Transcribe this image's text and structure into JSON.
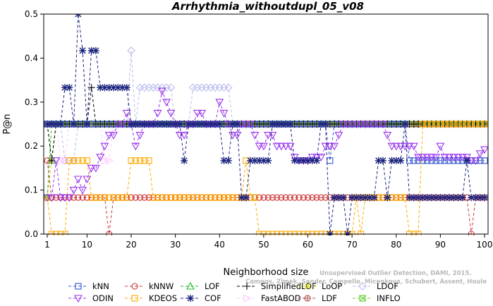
{
  "chart_data": {
    "type": "line",
    "title": "Arrhythmia_withoutdupl_05_v08",
    "xlabel": "Neighborhood size",
    "ylabel": "P@n",
    "xlim": [
      1,
      100
    ],
    "ylim": [
      0,
      0.5
    ],
    "x_ticks": [
      1,
      10,
      20,
      30,
      40,
      50,
      60,
      70,
      80,
      90,
      100
    ],
    "y_ticks": [
      0.0,
      0.1,
      0.2,
      0.3,
      0.4,
      0.5
    ],
    "y_tick_labels": [
      "0.0",
      "0.1",
      "0.2",
      "0.3",
      "0.4",
      "0.5"
    ],
    "grid": false,
    "legend_position": "bottom",
    "credit": "Campos, Zimek, Sander, Campello, Micenkova, Schubert, Assent, Houle",
    "credit_line1": "Unsupervised Outlier Detection, DAMI, 2015.",
    "series": [
      {
        "name": "kNN",
        "color": "#3355cc",
        "marker": "square",
        "points": [
          [
            1,
            0.25
          ],
          [
            64,
            0.25
          ],
          [
            65,
            0.167
          ],
          [
            66,
            0.25
          ],
          [
            82,
            0.25
          ],
          [
            83,
            0.167
          ],
          [
            100,
            0.167
          ]
        ]
      },
      {
        "name": "kNNW",
        "color": "#cc3333",
        "marker": "circle",
        "points": [
          [
            1,
            0.167
          ],
          [
            2,
            0.083
          ],
          [
            14,
            0.083
          ],
          [
            15,
            0.0
          ],
          [
            16,
            0.083
          ],
          [
            47,
            0.083
          ],
          [
            48,
            0.083
          ],
          [
            96,
            0.083
          ],
          [
            97,
            0.0
          ],
          [
            98,
            0.083
          ],
          [
            100,
            0.083
          ]
        ]
      },
      {
        "name": "LOF",
        "color": "#22bb22",
        "marker": "triangle",
        "points": [
          [
            1,
            0.083
          ],
          [
            2,
            0.25
          ],
          [
            3,
            0.25
          ],
          [
            100,
            0.25
          ]
        ]
      },
      {
        "name": "SimplifiedLOF",
        "color": "#000000",
        "marker": "plus",
        "points": [
          [
            1,
            0.25
          ],
          [
            2,
            0.167
          ],
          [
            3,
            0.25
          ],
          [
            10,
            0.25
          ],
          [
            11,
            0.333
          ],
          [
            12,
            0.25
          ],
          [
            100,
            0.25
          ]
        ]
      },
      {
        "name": "LoOP",
        "color": "#dddd00",
        "marker": "cross",
        "points": [
          [
            1,
            0.083
          ],
          [
            2,
            0.167
          ],
          [
            3,
            0.25
          ],
          [
            100,
            0.25
          ]
        ]
      },
      {
        "name": "LDOF",
        "color": "#bbbbee",
        "marker": "diamond",
        "points": [
          [
            1,
            0.25
          ],
          [
            5,
            0.167
          ],
          [
            8,
            0.25
          ],
          [
            19,
            0.25
          ],
          [
            20,
            0.417
          ],
          [
            21,
            0.25
          ],
          [
            22,
            0.333
          ],
          [
            28,
            0.333
          ],
          [
            30,
            0.25
          ],
          [
            34,
            0.333
          ],
          [
            42,
            0.333
          ],
          [
            43,
            0.25
          ],
          [
            100,
            0.25
          ]
        ]
      },
      {
        "name": "ODIN",
        "color": "#9933ee",
        "marker": "triangle-down",
        "points": [
          [
            1,
            0.083
          ],
          [
            2,
            0.083
          ],
          [
            3,
            0.167
          ],
          [
            4,
            0.083
          ],
          [
            5,
            0.083
          ],
          [
            6,
            0.083
          ],
          [
            7,
            0.1
          ],
          [
            8,
            0.125
          ],
          [
            9,
            0.1
          ],
          [
            10,
            0.125
          ],
          [
            11,
            0.15
          ],
          [
            12,
            0.15
          ],
          [
            13,
            0.175
          ],
          [
            14,
            0.2
          ],
          [
            15,
            0.225
          ],
          [
            16,
            0.225
          ],
          [
            17,
            0.25
          ],
          [
            18,
            0.25
          ],
          [
            19,
            0.275
          ],
          [
            20,
            0.25
          ],
          [
            21,
            0.2
          ],
          [
            22,
            0.225
          ],
          [
            23,
            0.25
          ],
          [
            24,
            0.25
          ],
          [
            25,
            0.25
          ],
          [
            26,
            0.275
          ],
          [
            27,
            0.325
          ],
          [
            28,
            0.3
          ],
          [
            29,
            0.275
          ],
          [
            30,
            0.25
          ],
          [
            31,
            0.225
          ],
          [
            32,
            0.225
          ],
          [
            33,
            0.25
          ],
          [
            34,
            0.25
          ],
          [
            35,
            0.275
          ],
          [
            36,
            0.275
          ],
          [
            37,
            0.25
          ],
          [
            38,
            0.25
          ],
          [
            39,
            0.25
          ],
          [
            40,
            0.3
          ],
          [
            41,
            0.275
          ],
          [
            42,
            0.25
          ],
          [
            43,
            0.225
          ],
          [
            44,
            0.225
          ],
          [
            45,
            0.25
          ],
          [
            46,
            0.25
          ],
          [
            47,
            0.25
          ],
          [
            48,
            0.225
          ],
          [
            49,
            0.2
          ],
          [
            50,
            0.2
          ],
          [
            51,
            0.225
          ],
          [
            52,
            0.225
          ],
          [
            53,
            0.2
          ],
          [
            54,
            0.2
          ],
          [
            55,
            0.2
          ],
          [
            56,
            0.2
          ],
          [
            57,
            0.175
          ],
          [
            58,
            0.167
          ],
          [
            59,
            0.167
          ],
          [
            60,
            0.167
          ],
          [
            61,
            0.175
          ],
          [
            62,
            0.175
          ],
          [
            63,
            0.175
          ],
          [
            64,
            0.2
          ],
          [
            65,
            0.2
          ],
          [
            66,
            0.2
          ],
          [
            67,
            0.225
          ],
          [
            68,
            0.25
          ],
          [
            69,
            0.25
          ],
          [
            70,
            0.25
          ],
          [
            75,
            0.25
          ],
          [
            76,
            0.25
          ],
          [
            77,
            0.25
          ],
          [
            78,
            0.225
          ],
          [
            79,
            0.2
          ],
          [
            80,
            0.2
          ],
          [
            81,
            0.2
          ],
          [
            82,
            0.2
          ],
          [
            83,
            0.2
          ],
          [
            84,
            0.2
          ],
          [
            85,
            0.175
          ],
          [
            86,
            0.175
          ],
          [
            87,
            0.175
          ],
          [
            88,
            0.175
          ],
          [
            89,
            0.175
          ],
          [
            90,
            0.2
          ],
          [
            91,
            0.175
          ],
          [
            92,
            0.175
          ],
          [
            93,
            0.175
          ],
          [
            94,
            0.175
          ],
          [
            95,
            0.175
          ],
          [
            96,
            0.175
          ],
          [
            97,
            0.167
          ],
          [
            98,
            0.167
          ],
          [
            99,
            0.183
          ],
          [
            100,
            0.192
          ]
        ]
      },
      {
        "name": "KDEOS",
        "color": "#ffaa00",
        "marker": "square",
        "points": [
          [
            1,
            0.083
          ],
          [
            2,
            0.0
          ],
          [
            5,
            0.0
          ],
          [
            6,
            0.167
          ],
          [
            10,
            0.167
          ],
          [
            11,
            0.083
          ],
          [
            19,
            0.083
          ],
          [
            20,
            0.167
          ],
          [
            24,
            0.167
          ],
          [
            25,
            0.083
          ],
          [
            45,
            0.083
          ],
          [
            46,
            0.167
          ],
          [
            47,
            0.083
          ],
          [
            48,
            0.083
          ],
          [
            49,
            0.0
          ],
          [
            70,
            0.0
          ],
          [
            71,
            0.083
          ],
          [
            72,
            0.0
          ],
          [
            73,
            0.083
          ],
          [
            82,
            0.083
          ],
          [
            83,
            0.0
          ],
          [
            85,
            0.0
          ],
          [
            86,
            0.25
          ],
          [
            100,
            0.25
          ]
        ]
      },
      {
        "name": "COF",
        "color": "#1a237e",
        "marker": "asterisk",
        "points": [
          [
            1,
            0.25
          ],
          [
            4,
            0.25
          ],
          [
            5,
            0.333
          ],
          [
            6,
            0.333
          ],
          [
            7,
            0.25
          ],
          [
            8,
            0.5
          ],
          [
            9,
            0.417
          ],
          [
            10,
            0.25
          ],
          [
            11,
            0.417
          ],
          [
            12,
            0.417
          ],
          [
            13,
            0.333
          ],
          [
            14,
            0.333
          ],
          [
            15,
            0.333
          ],
          [
            16,
            0.333
          ],
          [
            17,
            0.333
          ],
          [
            18,
            0.333
          ],
          [
            19,
            0.333
          ],
          [
            20,
            0.25
          ],
          [
            31,
            0.25
          ],
          [
            32,
            0.167
          ],
          [
            33,
            0.25
          ],
          [
            40,
            0.25
          ],
          [
            41,
            0.167
          ],
          [
            42,
            0.167
          ],
          [
            43,
            0.25
          ],
          [
            44,
            0.25
          ],
          [
            45,
            0.083
          ],
          [
            46,
            0.083
          ],
          [
            47,
            0.167
          ],
          [
            48,
            0.167
          ],
          [
            49,
            0.167
          ],
          [
            50,
            0.167
          ],
          [
            51,
            0.167
          ],
          [
            52,
            0.25
          ],
          [
            56,
            0.25
          ],
          [
            57,
            0.167
          ],
          [
            62,
            0.167
          ],
          [
            63,
            0.25
          ],
          [
            64,
            0.25
          ],
          [
            65,
            0.0
          ],
          [
            66,
            0.083
          ],
          [
            67,
            0.083
          ],
          [
            68,
            0.083
          ],
          [
            69,
            0.0
          ],
          [
            70,
            0.083
          ],
          [
            75,
            0.083
          ],
          [
            76,
            0.167
          ],
          [
            77,
            0.167
          ],
          [
            78,
            0.083
          ],
          [
            79,
            0.167
          ],
          [
            80,
            0.167
          ],
          [
            81,
            0.167
          ],
          [
            82,
            0.25
          ],
          [
            83,
            0.083
          ],
          [
            95,
            0.083
          ],
          [
            96,
            0.167
          ],
          [
            97,
            0.083
          ],
          [
            100,
            0.083
          ]
        ]
      },
      {
        "name": "FastABOD",
        "color": "#ffccff",
        "marker": "triangle-right",
        "points": [
          [
            1,
            0.25
          ],
          [
            4,
            0.167
          ],
          [
            6,
            0.25
          ],
          [
            14,
            0.167
          ],
          [
            16,
            0.25
          ],
          [
            100,
            0.25
          ]
        ]
      },
      {
        "name": "LDF",
        "color": "#aa4444",
        "marker": "circle-plus",
        "points": [
          [
            1,
            0.25
          ],
          [
            100,
            0.25
          ]
        ]
      },
      {
        "name": "INFLO",
        "color": "#66cc33",
        "marker": "square-x",
        "points": [
          [
            1,
            0.25
          ],
          [
            2,
            0.167
          ],
          [
            3,
            0.25
          ],
          [
            100,
            0.25
          ]
        ]
      }
    ],
    "draw_order": [
      "LDOF",
      "FastABOD",
      "LoOP",
      "LOF",
      "INFLO",
      "LDF",
      "kNN",
      "SimplifiedLOF",
      "kNNW",
      "KDEOS",
      "ODIN",
      "COF"
    ]
  }
}
